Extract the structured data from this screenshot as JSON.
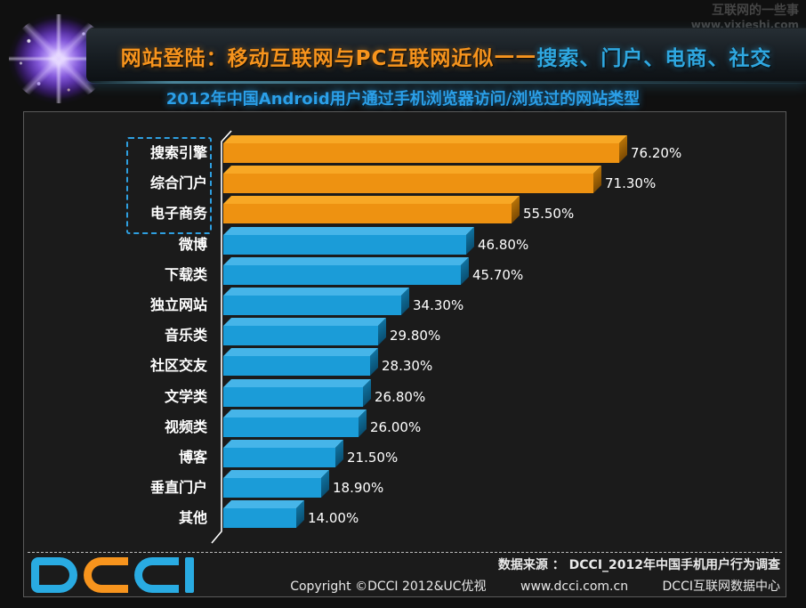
{
  "watermark": {
    "site_name": "互联网的一些事",
    "site_url": "www.yixieshi.com"
  },
  "header": {
    "title_part1": "网站登陆：移动互联网与PC互联网近似",
    "title_dash": "——",
    "title_part2": "搜索、门户、电商、社交",
    "subtitle": "2012年中国Android用户通过手机浏览器访问/浏览过的网站类型"
  },
  "chart_data": {
    "type": "bar",
    "orientation": "horizontal",
    "unit": "%",
    "title": "2012年中国Android用户通过手机浏览器访问/浏览过的网站类型",
    "categories": [
      "搜索引擎",
      "综合门户",
      "电子商务",
      "微博",
      "下载类",
      "独立网站",
      "音乐类",
      "社区交友",
      "文学类",
      "视频类",
      "博客",
      "垂直门户",
      "其他"
    ],
    "values": [
      76.2,
      71.3,
      55.5,
      46.8,
      45.7,
      34.3,
      29.8,
      28.3,
      26.8,
      26.0,
      21.5,
      18.9,
      14.0
    ],
    "value_labels": [
      "76.20%",
      "71.30%",
      "55.50%",
      "46.80%",
      "45.70%",
      "34.30%",
      "29.80%",
      "28.30%",
      "26.80%",
      "26.00%",
      "21.50%",
      "18.90%",
      "14.00%"
    ],
    "highlight_count": 3,
    "highlight_color": "#EE9211",
    "bar_color": "#1B9CD8",
    "grid": false,
    "legend": null,
    "annotation": "前三项（搜索引擎、综合门户、电子商务）用蓝色虚线框标出"
  },
  "footer": {
    "logo_text": "DCCI",
    "logo_letters": [
      {
        "char": "D",
        "color": "#29ABE2"
      },
      {
        "char": "C",
        "color": "#F7941D"
      },
      {
        "char": "C",
        "color": "#29ABE2"
      },
      {
        "char": "I",
        "color": "#29ABE2"
      }
    ],
    "source_line": "数据来源 ： DCCI_2012年中国手机用户行为调查",
    "copyright": "Copyright ©DCCI 2012&UC优视",
    "website": "www.dcci.com.cn",
    "org": "DCCI互联网数据中心"
  },
  "colors": {
    "accent_orange": "#F7941D",
    "accent_blue": "#2FA8E1",
    "bar_orange": "#EE9211",
    "bar_blue": "#1B9CD8",
    "panel_border": "#5a5a5a",
    "background": "#101010",
    "text": "#FFFFFF"
  }
}
